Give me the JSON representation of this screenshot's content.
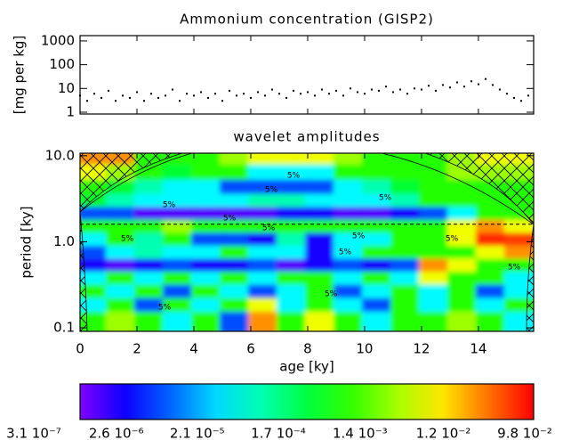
{
  "chart_data": [
    {
      "type": "scatter",
      "title": "Ammonium concentration (GISP2)",
      "y_label": "[mg per kg]",
      "x": [
        0,
        0.25,
        0.5,
        0.75,
        1,
        1.25,
        1.5,
        1.75,
        2,
        2.25,
        2.5,
        2.75,
        3,
        3.25,
        3.5,
        3.75,
        4,
        4.25,
        4.5,
        4.75,
        5,
        5.25,
        5.5,
        5.75,
        6,
        6.25,
        6.5,
        6.75,
        7,
        7.25,
        7.5,
        7.75,
        8,
        8.25,
        8.5,
        8.75,
        9,
        9.25,
        9.5,
        9.75,
        10,
        10.25,
        10.5,
        10.75,
        11,
        11.25,
        11.5,
        11.75,
        12,
        12.25,
        12.5,
        12.75,
        13,
        13.25,
        13.5,
        13.75,
        14,
        14.25,
        14.5,
        14.75,
        15,
        15.25,
        15.5,
        15.75
      ],
      "values": [
        5,
        3,
        6,
        4,
        8,
        3,
        5,
        4,
        7,
        3,
        6,
        4,
        5,
        9,
        3,
        6,
        5,
        7,
        4,
        6,
        3,
        8,
        5,
        6,
        4,
        7,
        5,
        9,
        6,
        4,
        8,
        6,
        7,
        5,
        9,
        6,
        8,
        5,
        10,
        7,
        6,
        9,
        8,
        12,
        7,
        9,
        6,
        10,
        9,
        13,
        8,
        14,
        11,
        18,
        12,
        20,
        15,
        25,
        14,
        9,
        6,
        4,
        3,
        5
      ],
      "color": "#000000",
      "xlim": [
        0,
        15.94
      ],
      "xticks": [
        0,
        2,
        4,
        6,
        8,
        10,
        12,
        14
      ],
      "ylim": [
        0.84,
        1670
      ],
      "yticks": [
        1,
        10,
        100,
        1000
      ],
      "log_y": true
    },
    {
      "type": "heatmap",
      "title": "wavelet amplitudes",
      "x_label": "age [ky]",
      "y_label": "period [ky]",
      "x": [
        0.5,
        1.5,
        2.5,
        3.5,
        4.5,
        5.5,
        6.5,
        7.5,
        8.5,
        9.5,
        10.5,
        11.5,
        12.5,
        13.5,
        14.5,
        15.5
      ],
      "y": [
        9,
        6,
        4,
        2.8,
        2,
        1.4,
        1,
        0.7,
        0.5,
        0.35,
        0.25,
        0.17,
        0.12
      ],
      "values": [
        [
          0.02,
          0.02,
          0.0005,
          0.0005,
          0.0005,
          0.002,
          0.005,
          0.005,
          0.005,
          0.002,
          0.0005,
          0.0005,
          0.0005,
          0.002,
          0.005,
          0.005
        ],
        [
          0.005,
          0.002,
          0.0005,
          0.0002,
          0.0005,
          0.0005,
          2e-05,
          2e-05,
          2e-05,
          0.0005,
          0.0005,
          0.0005,
          0.0005,
          0.002,
          0.002,
          0.002
        ],
        [
          0.0005,
          0.0002,
          5e-05,
          2e-05,
          2e-05,
          3e-06,
          3e-06,
          3e-06,
          3e-06,
          2e-05,
          5e-05,
          0.0002,
          0.0005,
          0.0005,
          0.0005,
          0.0005
        ],
        [
          0.0002,
          5e-05,
          2e-05,
          2e-05,
          2e-05,
          2e-05,
          5e-05,
          5e-05,
          2e-05,
          2e-05,
          2e-05,
          5e-05,
          0.0005,
          0.0005,
          0.0005,
          0.0005
        ],
        [
          3e-06,
          3e-06,
          5e-07,
          5e-07,
          5e-07,
          5e-07,
          5e-07,
          1e-06,
          1e-06,
          5e-07,
          5e-07,
          1e-06,
          3e-06,
          2e-05,
          0.0005,
          0.0005
        ],
        [
          0.0005,
          0.0005,
          0.0005,
          0.002,
          0.0005,
          0.0005,
          0.0005,
          0.0005,
          0.0005,
          0.0005,
          0.0005,
          0.0005,
          0.0005,
          0.005,
          0.02,
          0.005
        ],
        [
          2e-05,
          0.0005,
          5e-05,
          0.0005,
          3e-06,
          3e-06,
          1e-06,
          5e-05,
          1e-06,
          2e-05,
          2e-05,
          0.0005,
          0.0005,
          0.005,
          0.06,
          0.05
        ],
        [
          3e-06,
          2e-05,
          5e-05,
          2e-05,
          2e-05,
          0.0005,
          2e-05,
          2e-05,
          1e-06,
          2e-05,
          0.0005,
          0.0005,
          0.0005,
          0.0005,
          0.005,
          0.02
        ],
        [
          1e-06,
          5e-07,
          1e-06,
          3e-06,
          1e-06,
          1e-06,
          3e-06,
          5e-07,
          1e-06,
          3e-06,
          1e-06,
          3e-06,
          0.02,
          0.005,
          0.0005,
          0.0005
        ],
        [
          2e-05,
          0.0005,
          2e-05,
          0.0005,
          2e-05,
          0.0005,
          2e-05,
          0.0005,
          0.0005,
          2e-05,
          0.0005,
          2e-05,
          0.005,
          0.0005,
          0.0005,
          2e-05
        ],
        [
          0.0005,
          2e-05,
          0.0005,
          3e-06,
          0.0005,
          2e-05,
          3e-06,
          2e-05,
          0.0005,
          3e-06,
          2e-05,
          0.0005,
          2e-05,
          0.0005,
          3e-06,
          2e-05
        ],
        [
          2e-05,
          0.0005,
          3e-06,
          0.0005,
          2e-05,
          0.0005,
          0.005,
          2e-05,
          0.0005,
          2e-05,
          3e-06,
          0.0005,
          2e-05,
          0.0005,
          2e-05,
          0.0005
        ],
        [
          0.0005,
          0.002,
          0.0005,
          2e-05,
          0.0005,
          3e-06,
          0.02,
          0.0005,
          0.005,
          0.0005,
          2e-05,
          0.0005,
          0.0005,
          0.002,
          0.0005,
          2e-05
        ]
      ],
      "xlim": [
        0,
        15.94
      ],
      "xticks": [
        0,
        2,
        4,
        6,
        8,
        10,
        12,
        14
      ],
      "ylim": [
        0.091,
        10.7
      ],
      "yticks": [
        0.1,
        {
          "value": 1,
          "label": "1.0"
        },
        {
          "value": 10,
          "label": "10.0"
        }
      ],
      "log_y": true,
      "dashed_line": 1.6,
      "annotations": [
        "5%",
        "5%",
        "5%",
        "5%",
        "5%",
        "5%",
        "5%",
        "5%",
        "5%",
        "5%",
        "5%",
        "5%",
        "5%"
      ],
      "colorbar": {
        "lim": [
          3.1e-07,
          0.098
        ],
        "ticks": [
          {
            "value": 3.1e-07,
            "label": "3.1 10⁻⁷"
          },
          {
            "value": 2.6e-06,
            "label": "2.6 10⁻⁶"
          },
          {
            "value": 2.1e-05,
            "label": "2.1 10⁻⁵"
          },
          {
            "value": 0.00017,
            "label": "1.7 10⁻⁴"
          },
          {
            "value": 0.0014,
            "label": "1.4 10⁻³"
          },
          {
            "value": 0.012,
            "label": "1.2 10⁻²"
          },
          {
            "value": 0.098,
            "label": "9.8 10⁻²"
          }
        ]
      }
    }
  ]
}
